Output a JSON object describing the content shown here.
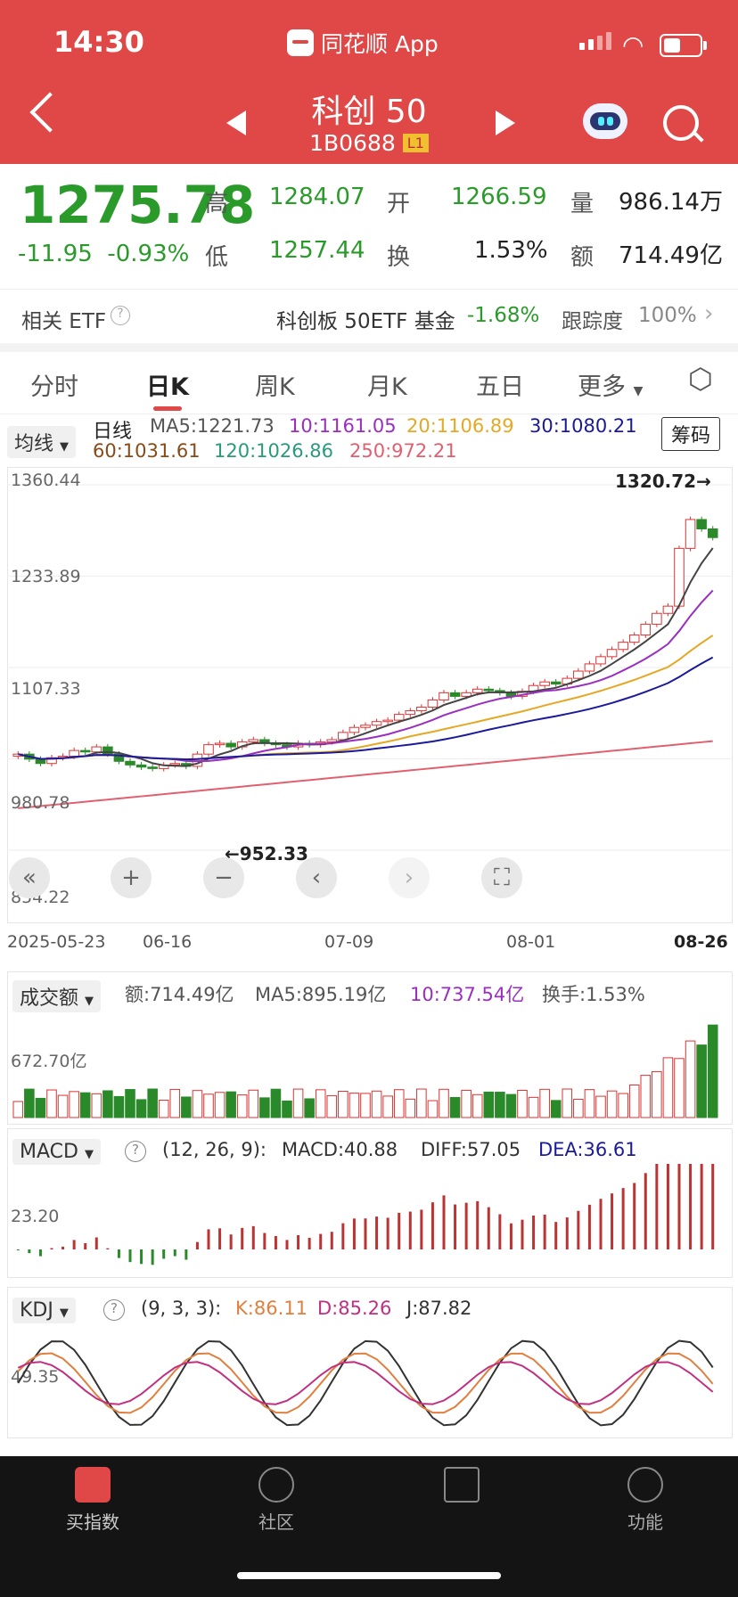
{
  "status": {
    "time": "14:30",
    "app_name": "同花顺 App"
  },
  "header": {
    "title": "科创 50",
    "code": "1B0688",
    "level_tag": "L1"
  },
  "quote": {
    "price": "1275.78",
    "change": "-11.95",
    "change_pct": "-0.93%",
    "high_label": "高",
    "high": "1284.07",
    "low_label": "低",
    "low": "1257.44",
    "open_label": "开",
    "open": "1266.59",
    "turnover_label": "换",
    "turnover": "1.53%",
    "volume_label": "量",
    "volume": "986.14万",
    "amount_label": "额",
    "amount": "714.49亿"
  },
  "etf": {
    "label": "相关 ETF",
    "name": "科创板 50ETF 基金",
    "change": "-1.68%",
    "track_label": "跟踪度",
    "track_value": "100%"
  },
  "tabs": [
    "分时",
    "日K",
    "周K",
    "月K",
    "五日",
    "更多"
  ],
  "ma": {
    "dropdown": "均线",
    "type": "日线",
    "ma5": "MA5:1221.73",
    "ma10": "10:1161.05",
    "ma20": "20:1106.89",
    "ma30": "30:1080.21",
    "ma60": "60:1031.61",
    "ma120": "120:1026.86",
    "ma250": "250:972.21",
    "chip_button": "筹码"
  },
  "kline": {
    "y_labels": [
      "1360.44",
      "1233.89",
      "1107.33",
      "980.78",
      "854.22"
    ],
    "max_marker": "1320.72→",
    "min_marker": "←952.33",
    "x_labels": [
      "2025-05-23",
      "06-16",
      "07-09",
      "08-01",
      "08-26"
    ]
  },
  "volume_panel": {
    "dropdown": "成交额",
    "amount": "额:714.49亿",
    "ma5": "MA5:895.19亿",
    "ma10": "10:737.54亿",
    "turnover": "换手:1.53%",
    "y_label": "672.70亿"
  },
  "macd_panel": {
    "dropdown": "MACD",
    "params": "(12, 26, 9):",
    "macd": "MACD:40.88",
    "diff": "DIFF:57.05",
    "dea": "DEA:36.61",
    "y_label": "23.20"
  },
  "kdj_panel": {
    "dropdown": "KDJ",
    "params": "(9, 3, 3):",
    "k": "K:86.11",
    "d": "D:85.26",
    "j": "J:87.82",
    "y_label": "49.35"
  },
  "bottom_nav": [
    "买指数",
    "社区",
    "",
    "功能"
  ],
  "colors": {
    "header_red": "#e04848",
    "up_red": "#d33333",
    "down_green": "#2a9a2a"
  },
  "chart_data": {
    "type": "candlestick",
    "ylim": [
      854.22,
      1360.44
    ],
    "closes": [
      975,
      968,
      962,
      970,
      972,
      980,
      978,
      985,
      975,
      965,
      960,
      957,
      955,
      960,
      962,
      958,
      975,
      988,
      990,
      985,
      992,
      995,
      990,
      988,
      985,
      990,
      988,
      992,
      995,
      1005,
      1012,
      1015,
      1020,
      1022,
      1030,
      1035,
      1040,
      1050,
      1060,
      1055,
      1060,
      1065,
      1063,
      1060,
      1055,
      1062,
      1070,
      1075,
      1072,
      1080,
      1090,
      1100,
      1110,
      1120,
      1130,
      1140,
      1155,
      1170,
      1180,
      1260,
      1300,
      1287,
      1275
    ],
    "ma5": [
      1221.73
    ],
    "extremes": {
      "max": 1320.72,
      "min": 952.33
    }
  }
}
